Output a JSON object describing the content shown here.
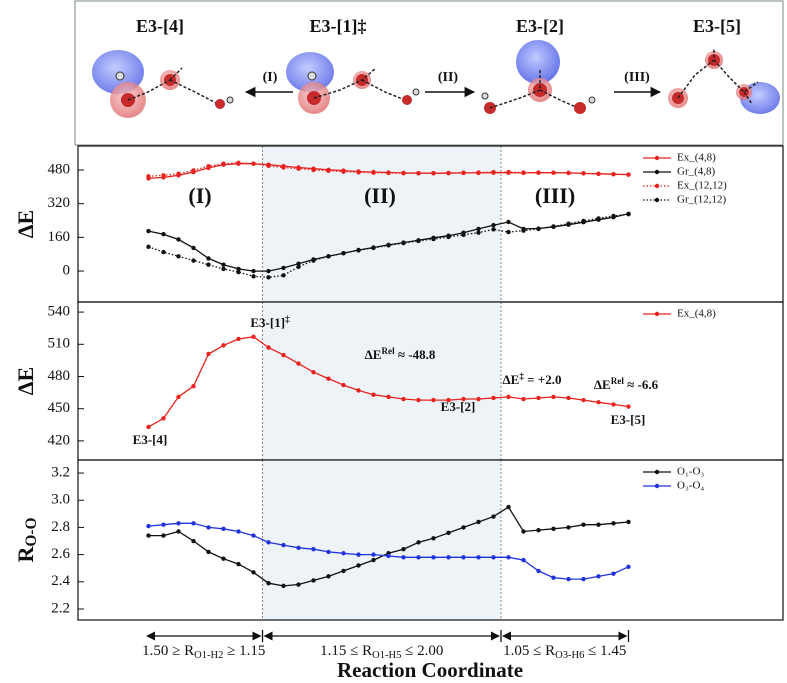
{
  "scheme": {
    "structures": [
      "E3-[4]",
      "E3-[1]‡",
      "E3-[2]",
      "E3-[5]"
    ],
    "steps": [
      "(I)",
      "(II)",
      "(III)"
    ]
  },
  "chart_data": [
    {
      "type": "line",
      "ylabel": "ΔE",
      "x": [
        0,
        1,
        2,
        3,
        4,
        5,
        6,
        7,
        8,
        9,
        10,
        11,
        12,
        13,
        14,
        15,
        16,
        17,
        18,
        19,
        20,
        21,
        22,
        23,
        24,
        25,
        26,
        27,
        28,
        29,
        30,
        31,
        32
      ],
      "xlim": [
        -4.7,
        42.3
      ],
      "ylim": [
        -147,
        594
      ],
      "yticks": [
        0,
        160,
        320,
        480
      ],
      "vlines": [
        7.6,
        23.5
      ],
      "legend": "upper right",
      "annotations": [
        "(I)",
        "(II)",
        "(III)"
      ],
      "series": [
        {
          "name": "Ex_(4,8)",
          "color": "#e8231f",
          "style": "solid",
          "values": [
            440,
            445,
            455,
            470,
            490,
            505,
            510,
            510,
            505,
            498,
            492,
            486,
            481,
            477,
            473,
            470,
            468,
            466,
            465,
            465,
            465,
            466,
            466,
            467,
            467,
            466,
            467,
            467,
            466,
            464,
            462,
            460,
            458
          ]
        },
        {
          "name": "Gr_(4,8)",
          "color": "#111111",
          "style": "solid",
          "values": [
            190,
            175,
            150,
            110,
            60,
            30,
            10,
            0,
            0,
            15,
            35,
            55,
            70,
            85,
            100,
            112,
            124,
            135,
            146,
            158,
            168,
            182,
            200,
            218,
            233,
            200,
            202,
            210,
            220,
            232,
            244,
            256,
            272
          ]
        },
        {
          "name": "Ex_(12,12)",
          "color": "#e8231f",
          "style": "dotted",
          "values": [
            450,
            455,
            462,
            478,
            498,
            510,
            514,
            510,
            500,
            492,
            486,
            480,
            476,
            472,
            469,
            467,
            466,
            465,
            465,
            465,
            466,
            467,
            468,
            470,
            470,
            468,
            468,
            467,
            466,
            464,
            462,
            460,
            458
          ]
        },
        {
          "name": "Gr_(12,12)",
          "color": "#111111",
          "style": "dotted",
          "values": [
            115,
            90,
            70,
            50,
            30,
            10,
            -5,
            -25,
            -30,
            -20,
            20,
            50,
            70,
            85,
            98,
            110,
            122,
            133,
            143,
            152,
            162,
            172,
            182,
            198,
            185,
            192,
            200,
            212,
            225,
            238,
            250,
            262,
            270
          ]
        }
      ]
    },
    {
      "type": "line",
      "ylabel": "ΔE",
      "x": [
        0,
        1,
        2,
        3,
        4,
        5,
        6,
        7,
        8,
        9,
        10,
        11,
        12,
        13,
        14,
        15,
        16,
        17,
        18,
        19,
        20,
        21,
        22,
        23,
        24,
        25,
        26,
        27,
        28,
        29,
        30,
        31,
        32
      ],
      "xlim": [
        -4.7,
        42.3
      ],
      "ylim": [
        402.2,
        549.4
      ],
      "yticks": [
        420,
        450,
        480,
        510,
        540
      ],
      "vlines": [
        7.6,
        23.5
      ],
      "legend": "upper right",
      "annotations": [
        [
          "E3-[1]",
          "‡",
          ""
        ],
        [
          "ΔE",
          "Rel",
          " ≈ -48.8"
        ],
        [
          "ΔE",
          "‡",
          " = +2.0"
        ],
        [
          "ΔE",
          "Rel",
          " ≈ -6.6"
        ],
        [
          "E3-[2]"
        ],
        [
          "E3-[4]"
        ],
        [
          "E3-[5]"
        ]
      ],
      "series": [
        {
          "name": "Ex_(4,8)",
          "color": "#e8231f",
          "style": "solid",
          "values": [
            433,
            441,
            461,
            471,
            501,
            509,
            515,
            517,
            507,
            500,
            492,
            484,
            478,
            472,
            467,
            463,
            461,
            459,
            458,
            458,
            458,
            459,
            459,
            460,
            461,
            459,
            460,
            461,
            460,
            458,
            456,
            454,
            452
          ]
        }
      ]
    },
    {
      "type": "line",
      "ylabel": [
        "R",
        "O-O"
      ],
      "x": [
        0,
        1,
        2,
        3,
        4,
        5,
        6,
        7,
        8,
        9,
        10,
        11,
        12,
        13,
        14,
        15,
        16,
        17,
        18,
        19,
        20,
        21,
        22,
        23,
        24,
        25,
        26,
        27,
        28,
        29,
        30,
        31,
        32
      ],
      "xlim": [
        -4.7,
        42.3
      ],
      "ylim": [
        2.119,
        3.296
      ],
      "yticks": [
        2.2,
        2.4,
        2.6,
        2.8,
        {
          "value": 3,
          "label": "3.0"
        },
        3.2
      ],
      "vlines": [
        7.6,
        23.5
      ],
      "legend": "upper right",
      "xlabel": "Reaction Coordinate",
      "xranges": [
        [
          "1.50 ≥ R",
          "O1-H2",
          " ≥ 1.15"
        ],
        [
          "1.15 ≤ R",
          "O1-H5",
          " ≤ 2.00"
        ],
        [
          "1.05 ≤ R",
          "O3-H6",
          " ≤ 1.45"
        ]
      ],
      "series": [
        {
          "name": "O₁-O₃",
          "color": "#111111",
          "style": "solid",
          "values": [
            2.74,
            2.74,
            2.77,
            2.7,
            2.62,
            2.57,
            2.53,
            2.47,
            2.39,
            2.37,
            2.38,
            2.41,
            2.44,
            2.48,
            2.52,
            2.56,
            2.61,
            2.64,
            2.69,
            2.72,
            2.76,
            2.8,
            2.84,
            2.88,
            2.95,
            2.77,
            2.78,
            2.79,
            2.8,
            2.82,
            2.82,
            2.83,
            2.84
          ]
        },
        {
          "name": "O₃-O₄",
          "color": "#2233dd",
          "style": "solid",
          "values": [
            2.81,
            2.82,
            2.83,
            2.83,
            2.8,
            2.79,
            2.77,
            2.74,
            2.69,
            2.67,
            2.65,
            2.64,
            2.62,
            2.61,
            2.6,
            2.6,
            2.59,
            2.58,
            2.58,
            2.58,
            2.58,
            2.58,
            2.58,
            2.58,
            2.58,
            2.56,
            2.48,
            2.43,
            2.42,
            2.42,
            2.44,
            2.46,
            2.51
          ]
        }
      ]
    }
  ]
}
